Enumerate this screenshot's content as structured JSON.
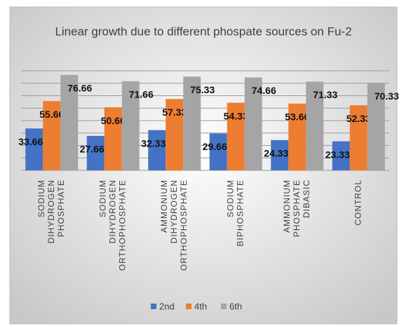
{
  "chart_data": {
    "type": "bar",
    "title": "Linear growth due to different phospate sources on Fu-2",
    "categories": [
      [
        "SODIUM",
        "DIHYDROGEN",
        "PHOSPHATE"
      ],
      [
        "SODIUM",
        "DIHYDROGEN",
        "ORTHOPHOSPHATE"
      ],
      [
        "AMMONIUM",
        "DIHYDROGEN",
        "ORTHOPHOSPHATE"
      ],
      [
        "SODIUM",
        "BIPHOSPHATE"
      ],
      [
        "AMMONIUM",
        "PHOSPHATE",
        "DIBASIC"
      ],
      [
        "CONTROL"
      ]
    ],
    "series": [
      {
        "name": "2nd",
        "color": "#4472c4",
        "values": [
          33.66,
          27.66,
          32.33,
          29.66,
          24.33,
          23.33
        ]
      },
      {
        "name": "4th",
        "color": "#ed7d31",
        "values": [
          55.66,
          50.66,
          57.33,
          54.33,
          53.66,
          52.33
        ]
      },
      {
        "name": "6th",
        "color": "#a5a5a5",
        "values": [
          76.66,
          71.66,
          75.33,
          74.66,
          71.33,
          70.33
        ]
      }
    ],
    "ylim": [
      0,
      80
    ],
    "yticks": [
      0,
      10,
      20,
      30,
      40,
      50,
      60,
      70,
      80
    ],
    "grid": true,
    "legend": "bottom"
  }
}
